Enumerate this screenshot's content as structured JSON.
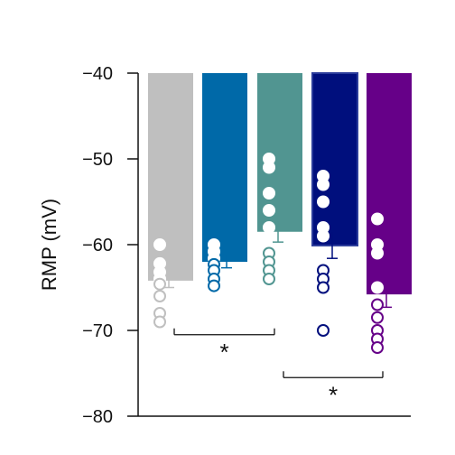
{
  "chart_data": {
    "type": "bar",
    "title": "",
    "xlabel": "",
    "ylabel": "RMP (mV)",
    "ylim": [
      -80,
      -40
    ],
    "yticks": [
      -40,
      -50,
      -60,
      -70,
      -80
    ],
    "ytick_labels": [
      "−40",
      "−50",
      "−60",
      "−70",
      "−80"
    ],
    "bars": [
      {
        "mean": -64.2,
        "err_low": -65.0,
        "err_high": -63.4,
        "color": "#bfbfbf",
        "points": [
          -60.0,
          -62.2,
          -63.2,
          -64.0,
          -64.6,
          -66.0,
          -68.0,
          -69.0
        ]
      },
      {
        "mean": -62.0,
        "err_low": -62.7,
        "err_high": -61.3,
        "color": "#0069a8",
        "points": [
          -60.0,
          -60.8,
          -61.6,
          -62.3,
          -63.0,
          -64.0,
          -64.8
        ]
      },
      {
        "mean": -58.5,
        "err_low": -59.7,
        "err_high": -57.3,
        "color": "#519591",
        "points": [
          -50.0,
          -51.0,
          -54.0,
          -56.0,
          -58.0,
          -61.0,
          -62.0,
          -63.0,
          -64.0
        ]
      },
      {
        "mean": -60.1,
        "err_low": -61.6,
        "err_high": -58.6,
        "color": "#000f7d",
        "points": [
          -52.0,
          -53.0,
          -55.0,
          -58.0,
          -59.0,
          -63.0,
          -64.0,
          -65.0,
          -70.0
        ]
      },
      {
        "mean": -65.8,
        "err_low": -67.3,
        "err_high": -64.3,
        "color": "#660088",
        "points": [
          -57.0,
          -60.0,
          -61.0,
          -65.0,
          -67.0,
          -68.5,
          -70.0,
          -71.0,
          -72.0
        ]
      }
    ],
    "annotations": [
      {
        "type": "bracket",
        "from_bar": 0,
        "to_bar": 2,
        "y": -70.5,
        "label": "*"
      },
      {
        "type": "bracket",
        "from_bar": 2,
        "to_bar": 4,
        "y": -75.5,
        "label": "*"
      }
    ],
    "grid": false
  }
}
